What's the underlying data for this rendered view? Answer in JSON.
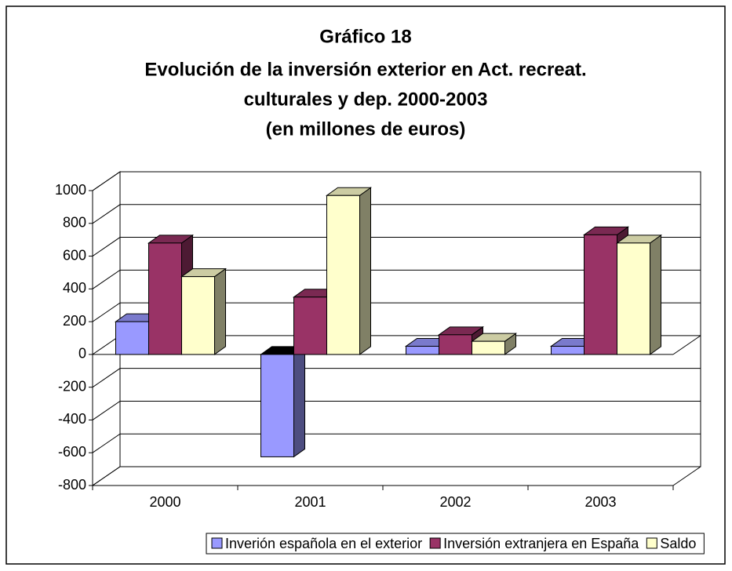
{
  "chart_data": {
    "type": "bar3d",
    "title": [
      "Gráfico 18",
      "Evolución de la inversión exterior en Act. recreat.",
      "culturales y dep. 2000-2003",
      "(en millones de euros)"
    ],
    "categories": [
      "2000",
      "2001",
      "2002",
      "2003"
    ],
    "series": [
      {
        "name": "Inverión española en el exterior",
        "color": "#9999ff",
        "values": [
          200,
          -625,
          50,
          50
        ]
      },
      {
        "name": "Inversión extranjera en España",
        "color": "#993366",
        "values": [
          680,
          350,
          120,
          730
        ]
      },
      {
        "name": "Saldo",
        "color": "#ffffcc",
        "values": [
          475,
          970,
          80,
          680
        ]
      }
    ],
    "ylim": [
      -800,
      1000
    ],
    "yticks": [
      -800,
      -600,
      -400,
      -200,
      0,
      200,
      400,
      600,
      800,
      1000
    ],
    "grid": true,
    "legend": "bottom"
  }
}
